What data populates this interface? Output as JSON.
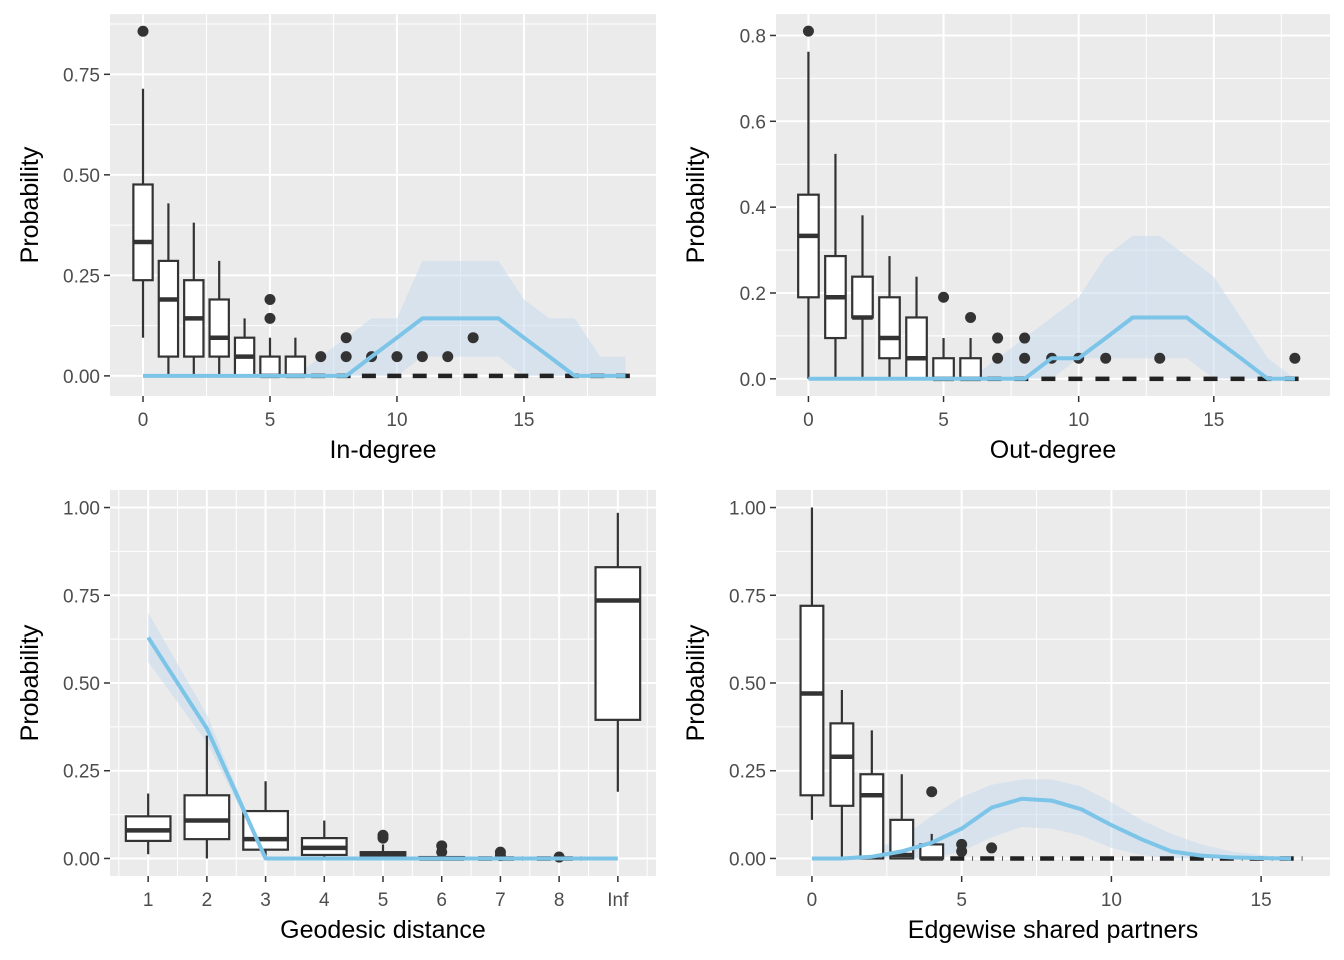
{
  "chart_data": [
    {
      "type": "boxplot",
      "xlabel": "In-degree",
      "ylabel": "Probability",
      "xlim": [
        -1.3,
        20.2
      ],
      "ylim": [
        -0.05,
        0.9
      ],
      "xticks": [
        0,
        5,
        10,
        15
      ],
      "xtick_labels": [
        "0",
        "5",
        "10",
        "15"
      ],
      "yticks": [
        0,
        0.25,
        0.5,
        0.75
      ],
      "ytick_labels": [
        "0.00",
        "0.25",
        "0.50",
        "0.75"
      ],
      "boxes": [
        {
          "x": 0,
          "lo": 0.095,
          "q1": 0.238,
          "median": 0.333,
          "q3": 0.476,
          "hi": 0.714,
          "outliers": [
            0.857
          ]
        },
        {
          "x": 1,
          "lo": 0,
          "q1": 0.048,
          "median": 0.19,
          "q3": 0.286,
          "hi": 0.429,
          "outliers": []
        },
        {
          "x": 2,
          "lo": 0,
          "q1": 0.048,
          "median": 0.143,
          "q3": 0.238,
          "hi": 0.381,
          "outliers": []
        },
        {
          "x": 3,
          "lo": 0,
          "q1": 0.048,
          "median": 0.095,
          "q3": 0.19,
          "hi": 0.286,
          "outliers": []
        },
        {
          "x": 4,
          "lo": 0,
          "q1": 0,
          "median": 0.048,
          "q3": 0.095,
          "hi": 0.143,
          "outliers": []
        },
        {
          "x": 5,
          "lo": 0,
          "q1": 0,
          "median": 0,
          "q3": 0.048,
          "hi": 0.095,
          "outliers": [
            0.143,
            0.19
          ]
        },
        {
          "x": 6,
          "lo": 0,
          "q1": 0,
          "median": 0,
          "q3": 0.048,
          "hi": 0.095,
          "outliers": []
        },
        {
          "x": 7,
          "lo": 0,
          "q1": 0,
          "median": 0,
          "q3": 0,
          "hi": 0,
          "outliers": [
            0.048
          ]
        },
        {
          "x": 8,
          "lo": 0,
          "q1": 0,
          "median": 0,
          "q3": 0,
          "hi": 0,
          "outliers": [
            0.048,
            0.095
          ]
        },
        {
          "x": 9,
          "lo": 0,
          "q1": 0,
          "median": 0,
          "q3": 0,
          "hi": 0,
          "outliers": [
            0.048
          ]
        },
        {
          "x": 10,
          "lo": 0,
          "q1": 0,
          "median": 0,
          "q3": 0,
          "hi": 0,
          "outliers": [
            0.048
          ]
        },
        {
          "x": 11,
          "lo": 0,
          "q1": 0,
          "median": 0,
          "q3": 0,
          "hi": 0,
          "outliers": [
            0.048
          ]
        },
        {
          "x": 12,
          "lo": 0,
          "q1": 0,
          "median": 0,
          "q3": 0,
          "hi": 0,
          "outliers": [
            0.048
          ]
        },
        {
          "x": 13,
          "lo": 0,
          "q1": 0,
          "median": 0,
          "q3": 0,
          "hi": 0,
          "outliers": [
            0.095
          ]
        },
        {
          "x": 14,
          "lo": 0,
          "q1": 0,
          "median": 0,
          "q3": 0,
          "hi": 0,
          "outliers": []
        },
        {
          "x": 15,
          "lo": 0,
          "q1": 0,
          "median": 0,
          "q3": 0,
          "hi": 0,
          "outliers": []
        },
        {
          "x": 16,
          "lo": 0,
          "q1": 0,
          "median": 0,
          "q3": 0,
          "hi": 0,
          "outliers": []
        },
        {
          "x": 17,
          "lo": 0,
          "q1": 0,
          "median": 0,
          "q3": 0,
          "hi": 0,
          "outliers": []
        },
        {
          "x": 18,
          "lo": 0,
          "q1": 0,
          "median": 0,
          "q3": 0,
          "hi": 0,
          "outliers": []
        },
        {
          "x": 19,
          "lo": 0,
          "q1": 0,
          "median": 0,
          "q3": 0,
          "hi": 0,
          "outliers": []
        }
      ],
      "observed": {
        "x": [
          0,
          1,
          2,
          3,
          4,
          5,
          6,
          7,
          8,
          9,
          10,
          11,
          12,
          13,
          14,
          15,
          16,
          17,
          18,
          19
        ],
        "y": [
          0,
          0,
          0,
          0,
          0,
          0,
          0,
          0,
          0,
          0.048,
          0.095,
          0.143,
          0.143,
          0.143,
          0.143,
          0.095,
          0.048,
          0,
          0,
          0
        ]
      },
      "band": {
        "x": [
          6,
          7,
          8,
          9,
          10,
          11,
          12,
          13,
          14,
          15,
          16,
          17,
          18,
          19
        ],
        "lower": [
          0,
          0,
          0,
          0,
          0,
          0.048,
          0.048,
          0.048,
          0.048,
          0,
          0,
          0,
          0,
          0
        ],
        "upper": [
          0,
          0.048,
          0.095,
          0.143,
          0.143,
          0.286,
          0.286,
          0.286,
          0.286,
          0.19,
          0.143,
          0.143,
          0.048,
          0.048
        ]
      },
      "colors": {
        "observed": "#7cc4e8",
        "band": "#c6dbef"
      }
    },
    {
      "type": "boxplot",
      "xlabel": "Out-degree",
      "ylabel": "Probability",
      "xlim": [
        -1.2,
        19.3
      ],
      "ylim": [
        -0.04,
        0.85
      ],
      "xticks": [
        0,
        5,
        10,
        15
      ],
      "xtick_labels": [
        "0",
        "5",
        "10",
        "15"
      ],
      "yticks": [
        0,
        0.2,
        0.4,
        0.6,
        0.8
      ],
      "ytick_labels": [
        "0.0",
        "0.2",
        "0.4",
        "0.6",
        "0.8"
      ],
      "boxes": [
        {
          "x": 0,
          "lo": 0,
          "q1": 0.19,
          "median": 0.333,
          "q3": 0.429,
          "hi": 0.762,
          "outliers": [
            0.81
          ]
        },
        {
          "x": 1,
          "lo": 0,
          "q1": 0.095,
          "median": 0.19,
          "q3": 0.286,
          "hi": 0.524,
          "outliers": []
        },
        {
          "x": 2,
          "lo": 0,
          "q1": 0.143,
          "median": 0.143,
          "q3": 0.238,
          "hi": 0.381,
          "outliers": []
        },
        {
          "x": 3,
          "lo": 0,
          "q1": 0.048,
          "median": 0.095,
          "q3": 0.19,
          "hi": 0.286,
          "outliers": []
        },
        {
          "x": 4,
          "lo": 0,
          "q1": 0,
          "median": 0.048,
          "q3": 0.143,
          "hi": 0.238,
          "outliers": []
        },
        {
          "x": 5,
          "lo": 0,
          "q1": 0,
          "median": 0,
          "q3": 0.048,
          "hi": 0.095,
          "outliers": [
            0.19
          ]
        },
        {
          "x": 6,
          "lo": 0,
          "q1": 0,
          "median": 0,
          "q3": 0.048,
          "hi": 0.095,
          "outliers": [
            0.143
          ]
        },
        {
          "x": 7,
          "lo": 0,
          "q1": 0,
          "median": 0,
          "q3": 0,
          "hi": 0,
          "outliers": [
            0.048,
            0.095
          ]
        },
        {
          "x": 8,
          "lo": 0,
          "q1": 0,
          "median": 0,
          "q3": 0,
          "hi": 0,
          "outliers": [
            0.048,
            0.095
          ]
        },
        {
          "x": 9,
          "lo": 0,
          "q1": 0,
          "median": 0,
          "q3": 0,
          "hi": 0,
          "outliers": [
            0.048
          ]
        },
        {
          "x": 10,
          "lo": 0,
          "q1": 0,
          "median": 0,
          "q3": 0,
          "hi": 0,
          "outliers": [
            0.048
          ]
        },
        {
          "x": 11,
          "lo": 0,
          "q1": 0,
          "median": 0,
          "q3": 0,
          "hi": 0,
          "outliers": [
            0.048
          ]
        },
        {
          "x": 12,
          "lo": 0,
          "q1": 0,
          "median": 0,
          "q3": 0,
          "hi": 0,
          "outliers": []
        },
        {
          "x": 13,
          "lo": 0,
          "q1": 0,
          "median": 0,
          "q3": 0,
          "hi": 0,
          "outliers": [
            0.048
          ]
        },
        {
          "x": 14,
          "lo": 0,
          "q1": 0,
          "median": 0,
          "q3": 0,
          "hi": 0,
          "outliers": []
        },
        {
          "x": 15,
          "lo": 0,
          "q1": 0,
          "median": 0,
          "q3": 0,
          "hi": 0,
          "outliers": []
        },
        {
          "x": 16,
          "lo": 0,
          "q1": 0,
          "median": 0,
          "q3": 0,
          "hi": 0,
          "outliers": []
        },
        {
          "x": 17,
          "lo": 0,
          "q1": 0,
          "median": 0,
          "q3": 0,
          "hi": 0,
          "outliers": []
        },
        {
          "x": 18,
          "lo": 0,
          "q1": 0,
          "median": 0,
          "q3": 0,
          "hi": 0,
          "outliers": [
            0.048
          ]
        }
      ],
      "observed": {
        "x": [
          0,
          1,
          2,
          3,
          4,
          5,
          6,
          7,
          8,
          9,
          10,
          11,
          12,
          13,
          14,
          15,
          16,
          17,
          18
        ],
        "y": [
          0,
          0,
          0,
          0,
          0,
          0,
          0,
          0,
          0,
          0.048,
          0.048,
          0.095,
          0.143,
          0.143,
          0.143,
          0.095,
          0.048,
          0,
          0
        ]
      },
      "band": {
        "x": [
          6,
          7,
          8,
          9,
          10,
          11,
          12,
          13,
          14,
          15,
          16,
          17,
          18
        ],
        "lower": [
          0,
          0,
          0,
          0,
          0.048,
          0.048,
          0.048,
          0.048,
          0.048,
          0,
          0,
          0,
          0
        ],
        "upper": [
          0,
          0.048,
          0.095,
          0.143,
          0.19,
          0.286,
          0.333,
          0.333,
          0.286,
          0.238,
          0.143,
          0.048,
          0
        ]
      },
      "colors": {
        "observed": "#7cc4e8",
        "band": "#c6dbef"
      }
    },
    {
      "type": "boxplot",
      "xlabel": "Geodesic distance",
      "ylabel": "Probability",
      "xlim": [
        0.35,
        9.65
      ],
      "ylim": [
        -0.05,
        1.05
      ],
      "xticks": [
        1,
        2,
        3,
        4,
        5,
        6,
        7,
        8,
        9
      ],
      "xtick_labels": [
        "1",
        "2",
        "3",
        "4",
        "5",
        "6",
        "7",
        "8",
        "Inf"
      ],
      "yticks": [
        0,
        0.25,
        0.5,
        0.75,
        1.0
      ],
      "ytick_labels": [
        "0.00",
        "0.25",
        "0.50",
        "0.75",
        "1.00"
      ],
      "boxes": [
        {
          "x": 1,
          "lo": 0.012,
          "q1": 0.05,
          "median": 0.08,
          "q3": 0.12,
          "hi": 0.185,
          "outliers": []
        },
        {
          "x": 2,
          "lo": 0.0,
          "q1": 0.055,
          "median": 0.108,
          "q3": 0.18,
          "hi": 0.35,
          "outliers": []
        },
        {
          "x": 3,
          "lo": 0.0,
          "q1": 0.025,
          "median": 0.055,
          "q3": 0.135,
          "hi": 0.22,
          "outliers": []
        },
        {
          "x": 4,
          "lo": 0.0,
          "q1": 0.01,
          "median": 0.03,
          "q3": 0.058,
          "hi": 0.108,
          "outliers": []
        },
        {
          "x": 5,
          "lo": 0.0,
          "q1": 0.0,
          "median": 0.01,
          "q3": 0.018,
          "hi": 0.04,
          "outliers": [
            0.058,
            0.066
          ]
        },
        {
          "x": 6,
          "lo": 0.0,
          "q1": 0.0,
          "median": 0.0,
          "q3": 0.004,
          "hi": 0.01,
          "outliers": [
            0.018,
            0.036
          ]
        },
        {
          "x": 7,
          "lo": 0.0,
          "q1": 0.0,
          "median": 0.0,
          "q3": 0.0,
          "hi": 0.0,
          "outliers": [
            0.008,
            0.018
          ]
        },
        {
          "x": 8,
          "lo": 0.0,
          "q1": 0.0,
          "median": 0.0,
          "q3": 0.0,
          "hi": 0.0,
          "outliers": [
            0.004
          ]
        },
        {
          "x": 9,
          "lo": 0.19,
          "q1": 0.395,
          "median": 0.735,
          "q3": 0.83,
          "hi": 0.985,
          "outliers": []
        }
      ],
      "observed": {
        "x": [
          1,
          2,
          3,
          4,
          5,
          6,
          7,
          8,
          9
        ],
        "y": [
          0.63,
          0.37,
          0,
          0,
          0,
          0,
          0,
          0,
          0
        ]
      },
      "band": {
        "x": [
          1,
          2,
          3
        ],
        "lower": [
          0.56,
          0.33,
          0
        ],
        "upper": [
          0.7,
          0.41,
          0
        ]
      },
      "colors": {
        "observed": "#7cc4e8",
        "band": "#c6dbef"
      }
    },
    {
      "type": "boxplot",
      "xlabel": "Edgewise shared partners",
      "ylabel": "Probability",
      "xlim": [
        -1.2,
        17.3
      ],
      "ylim": [
        -0.05,
        1.05
      ],
      "xticks": [
        0,
        5,
        10,
        15
      ],
      "xtick_labels": [
        "0",
        "5",
        "10",
        "15"
      ],
      "yticks": [
        0,
        0.25,
        0.5,
        0.75,
        1.0
      ],
      "ytick_labels": [
        "0.00",
        "0.25",
        "0.50",
        "0.75",
        "1.00"
      ],
      "boxes": [
        {
          "x": 0,
          "lo": 0.11,
          "q1": 0.18,
          "median": 0.47,
          "q3": 0.72,
          "hi": 1.0,
          "outliers": []
        },
        {
          "x": 1,
          "lo": 0,
          "q1": 0.15,
          "median": 0.29,
          "q3": 0.385,
          "hi": 0.48,
          "outliers": []
        },
        {
          "x": 2,
          "lo": 0,
          "q1": 0,
          "median": 0.18,
          "q3": 0.24,
          "hi": 0.365,
          "outliers": []
        },
        {
          "x": 3,
          "lo": 0,
          "q1": 0,
          "median": 0.01,
          "q3": 0.11,
          "hi": 0.24,
          "outliers": []
        },
        {
          "x": 4,
          "lo": 0,
          "q1": 0,
          "median": 0,
          "q3": 0.04,
          "hi": 0.07,
          "outliers": [
            0.19
          ]
        },
        {
          "x": 5,
          "lo": 0,
          "q1": 0,
          "median": 0,
          "q3": 0,
          "hi": 0,
          "outliers": [
            0.02,
            0.04
          ]
        },
        {
          "x": 6,
          "lo": 0,
          "q1": 0,
          "median": 0,
          "q3": 0,
          "hi": 0,
          "outliers": [
            0.03
          ]
        },
        {
          "x": 7,
          "lo": 0,
          "q1": 0,
          "median": 0,
          "q3": 0,
          "hi": 0,
          "outliers": []
        },
        {
          "x": 8,
          "lo": 0,
          "q1": 0,
          "median": 0,
          "q3": 0,
          "hi": 0,
          "outliers": []
        },
        {
          "x": 9,
          "lo": 0,
          "q1": 0,
          "median": 0,
          "q3": 0,
          "hi": 0,
          "outliers": []
        },
        {
          "x": 10,
          "lo": 0,
          "q1": 0,
          "median": 0,
          "q3": 0,
          "hi": 0,
          "outliers": []
        },
        {
          "x": 11,
          "lo": 0,
          "q1": 0,
          "median": 0,
          "q3": 0,
          "hi": 0,
          "outliers": []
        },
        {
          "x": 12,
          "lo": 0,
          "q1": 0,
          "median": 0,
          "q3": 0,
          "hi": 0,
          "outliers": []
        },
        {
          "x": 13,
          "lo": 0,
          "q1": 0,
          "median": 0,
          "q3": 0,
          "hi": 0,
          "outliers": []
        },
        {
          "x": 14,
          "lo": 0,
          "q1": 0,
          "median": 0,
          "q3": 0,
          "hi": 0,
          "outliers": []
        },
        {
          "x": 15,
          "lo": 0,
          "q1": 0,
          "median": 0,
          "q3": 0,
          "hi": 0,
          "outliers": []
        },
        {
          "x": 16,
          "lo": 0,
          "q1": 0,
          "median": 0,
          "q3": 0,
          "hi": 0,
          "outliers": []
        }
      ],
      "observed": {
        "x": [
          0,
          1,
          2,
          3,
          4,
          5,
          6,
          7,
          8,
          9,
          10,
          11,
          12,
          13,
          14,
          15,
          16
        ],
        "y": [
          0,
          0,
          0.005,
          0.02,
          0.045,
          0.085,
          0.145,
          0.17,
          0.165,
          0.14,
          0.095,
          0.055,
          0.02,
          0.008,
          0.003,
          0.001,
          0
        ]
      },
      "band": {
        "x": [
          0,
          1,
          2,
          3,
          4,
          5,
          6,
          7,
          8,
          9,
          10,
          11,
          12,
          13,
          14,
          15,
          16
        ],
        "lower": [
          0,
          0,
          0,
          0,
          0,
          0.02,
          0.06,
          0.09,
          0.085,
          0.065,
          0.03,
          0.01,
          0,
          0,
          0,
          0,
          0
        ],
        "upper": [
          0,
          0,
          0.02,
          0.06,
          0.12,
          0.175,
          0.21,
          0.225,
          0.225,
          0.205,
          0.16,
          0.11,
          0.07,
          0.04,
          0.02,
          0.01,
          0
        ]
      },
      "colors": {
        "observed": "#7cc4e8",
        "band": "#c6dbef"
      }
    }
  ]
}
